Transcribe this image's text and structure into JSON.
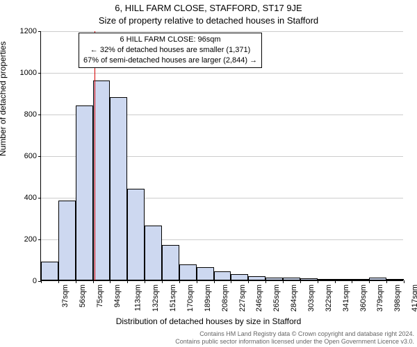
{
  "chart": {
    "type": "histogram",
    "title": "6, HILL FARM CLOSE, STAFFORD, ST17 9JE",
    "subtitle": "Size of property relative to detached houses in Stafford",
    "xlabel": "Distribution of detached houses by size in Stafford",
    "ylabel": "Number of detached properties",
    "background_color": "#ffffff",
    "grid_color": "#cccccc",
    "bar_fill": "#cdd8f0",
    "bar_stroke": "#000000",
    "marker_color": "#d40000",
    "marker_value": 96,
    "info_box": {
      "line1": "6 HILL FARM CLOSE: 96sqm",
      "line2": "← 32% of detached houses are smaller (1,371)",
      "line3": "67% of semi-detached houses are larger (2,844) →"
    },
    "x_start": 37,
    "x_step": 19,
    "x_bins": 21,
    "x_unit": "sqm",
    "values": [
      90,
      385,
      840,
      960,
      880,
      440,
      265,
      170,
      78,
      62,
      45,
      30,
      20,
      15,
      12,
      10,
      5,
      8,
      6,
      12,
      5
    ],
    "ylim": [
      0,
      1200
    ],
    "ytick_step": 200,
    "title_fontsize": 13,
    "label_fontsize": 12,
    "tick_fontsize": 11
  },
  "footer": {
    "line1": "Contains HM Land Registry data © Crown copyright and database right 2024.",
    "line2": "Contains public sector information licensed under the Open Government Licence v3.0."
  }
}
